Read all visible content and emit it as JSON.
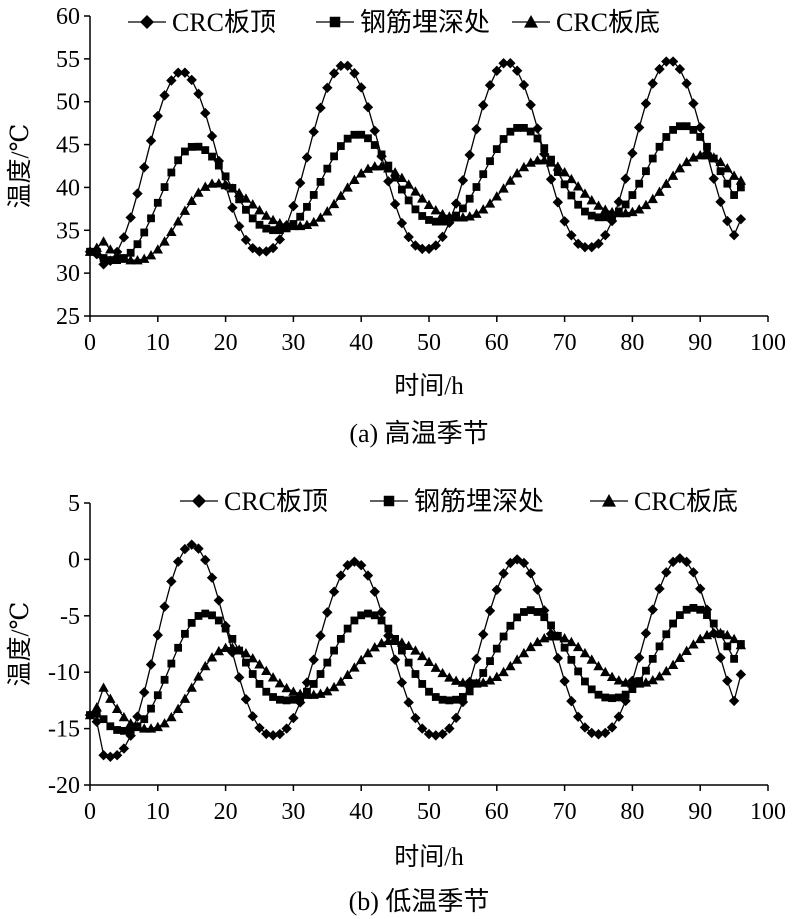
{
  "chart_data": [
    {
      "type": "line",
      "caption": "(a) 高温季节",
      "xlabel": "时间/h",
      "ylabel": "温度/℃",
      "xlim": [
        0,
        100
      ],
      "ylim": [
        25,
        60
      ],
      "xticks": [
        "0",
        "10",
        "20",
        "30",
        "40",
        "50",
        "60",
        "70",
        "80",
        "90",
        "100"
      ],
      "yticks": [
        "25",
        "30",
        "35",
        "40",
        "45",
        "50",
        "55",
        "60"
      ],
      "legend_position": "top",
      "series": [
        {
          "name": "CRC板顶",
          "marker": "diamond",
          "peaks": [
            53.5,
            54.3,
            54.6,
            54.8
          ],
          "troughs": [
            31.0,
            32.5,
            32.8,
            33.0
          ],
          "peak_hours": [
            13.5,
            37.5,
            61.5,
            85.5
          ],
          "start": 32.5,
          "end": 36.3
        },
        {
          "name": "钢筋埋深处",
          "marker": "square",
          "peaks": [
            44.8,
            46.2,
            47.0,
            47.2
          ],
          "troughs": [
            31.5,
            35.0,
            36.0,
            36.5
          ],
          "peak_hours": [
            15.5,
            39.5,
            63.5,
            87.5
          ],
          "start": 32.5,
          "end": 40.0
        },
        {
          "name": "CRC板底",
          "marker": "triangle",
          "peaks": [
            40.5,
            42.5,
            43.2,
            43.8
          ],
          "troughs": [
            31.5,
            35.5,
            36.5,
            37.0
          ],
          "peak_hours": [
            18.5,
            42.5,
            66.5,
            90.5
          ],
          "start": 32.5,
          "end": 40.8
        }
      ]
    },
    {
      "type": "line",
      "caption": "(b) 低温季节",
      "xlabel": "时间/h",
      "ylabel": "温度/℃",
      "xlim": [
        0,
        100
      ],
      "ylim": [
        -20,
        5
      ],
      "xticks": [
        "0",
        "10",
        "20",
        "30",
        "40",
        "50",
        "60",
        "70",
        "80",
        "90",
        "100"
      ],
      "yticks": [
        "5",
        "0",
        "-5",
        "-10",
        "-15",
        "-20"
      ],
      "legend_position": "top",
      "series": [
        {
          "name": "CRC板顶",
          "marker": "diamond",
          "peaks": [
            1.3,
            -0.2,
            0.0,
            0.1
          ],
          "troughs": [
            -17.5,
            -15.6,
            -15.6,
            -15.5
          ],
          "peak_hours": [
            15.0,
            39.0,
            63.0,
            87.0
          ],
          "start": -13.8,
          "end": -10.2
        },
        {
          "name": "钢筋埋深处",
          "marker": "square",
          "peaks": [
            -4.8,
            -4.8,
            -4.5,
            -4.3
          ],
          "troughs": [
            -15.2,
            -12.5,
            -12.5,
            -12.3
          ],
          "peak_hours": [
            17.0,
            41.0,
            65.0,
            89.0
          ],
          "start": -13.8,
          "end": -7.5
        },
        {
          "name": "CRC板底",
          "marker": "triangle",
          "peaks": [
            -7.8,
            -7.2,
            -6.8,
            -6.5
          ],
          "troughs": [
            -15.0,
            -12.0,
            -11.0,
            -11.0
          ],
          "peak_hours": [
            20.5,
            44.5,
            68.5,
            92.5
          ],
          "start": -13.8,
          "end": -7.6
        }
      ]
    }
  ]
}
